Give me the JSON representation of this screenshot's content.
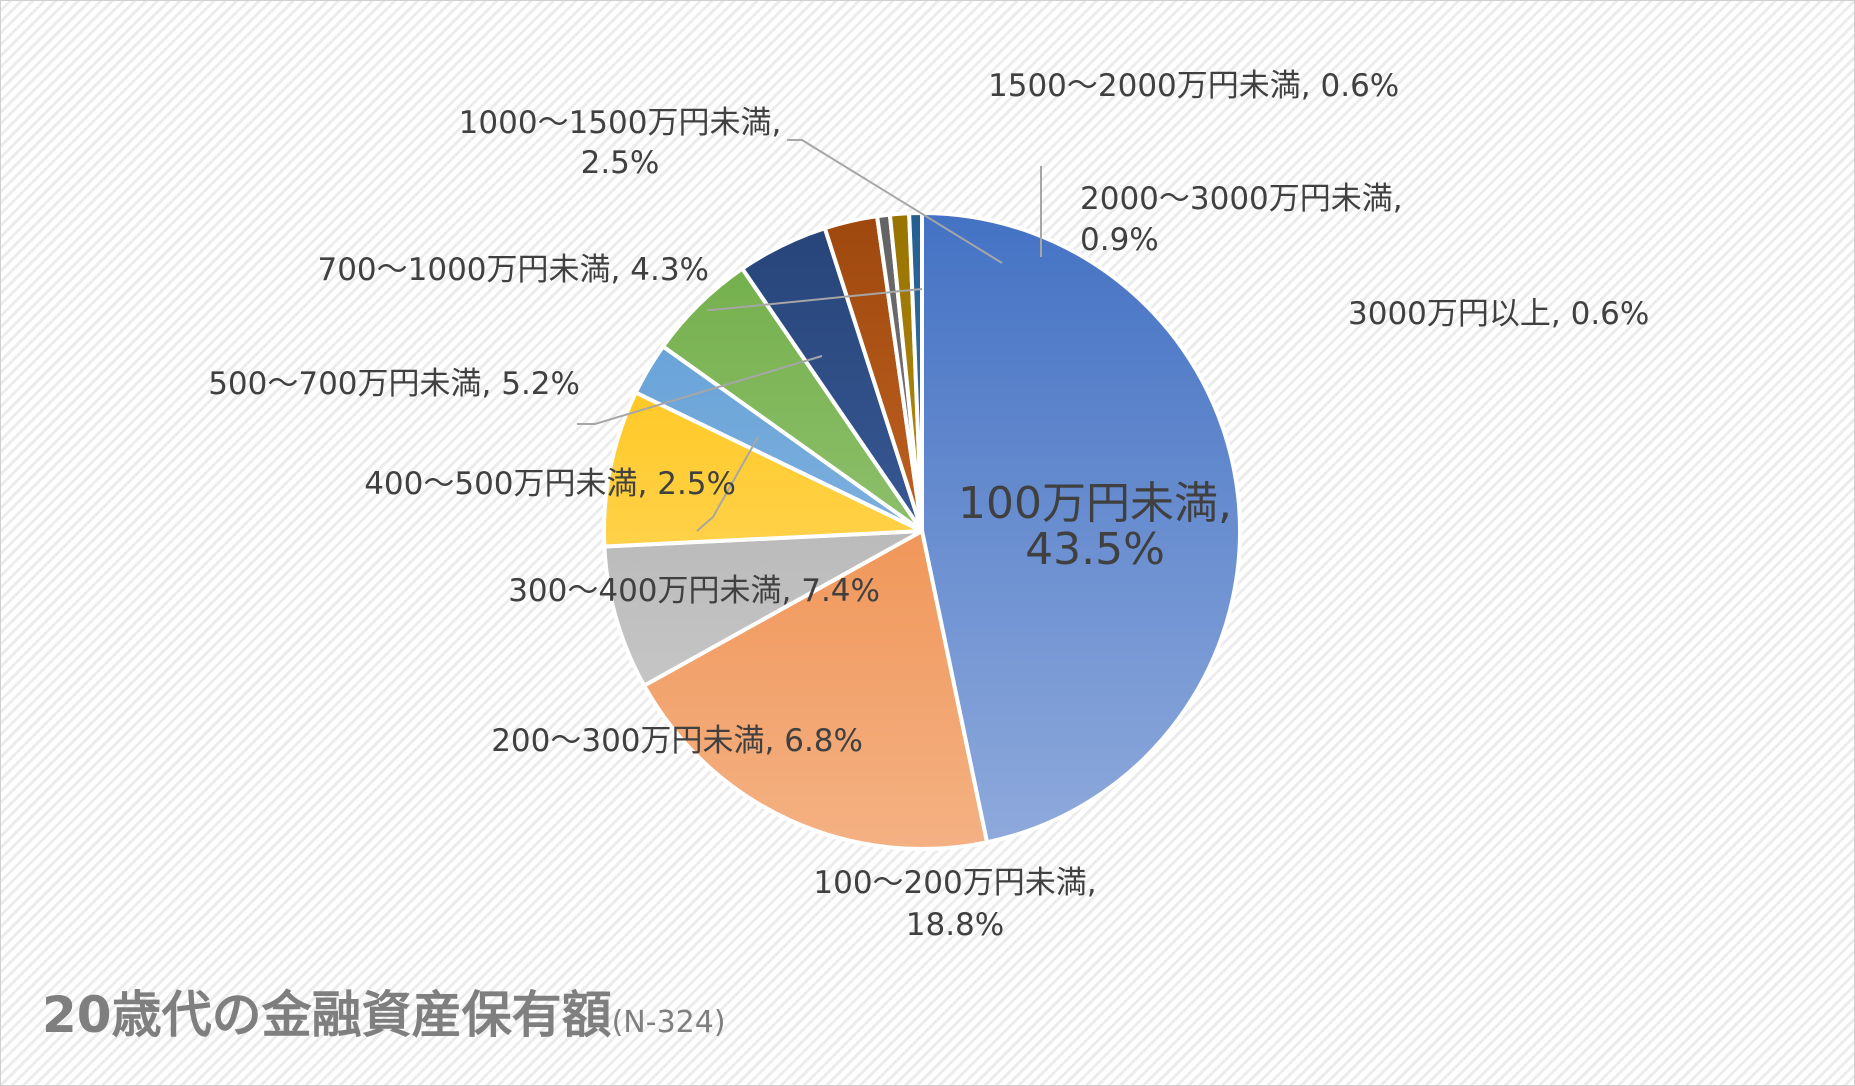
{
  "chart_data": {
    "type": "pie",
    "title": "20歳代の金融資産保有額",
    "subtitle": "(N-324)",
    "slices": [
      {
        "category": "100万円未満",
        "value": 43.5,
        "label": "43.5%",
        "color": "#4472C4",
        "color_light": "#8FAADC"
      },
      {
        "category": "100～200万円未満",
        "value": 18.8,
        "label": "18.8%",
        "color": "#ED7D31",
        "color_light": "#F4B183"
      },
      {
        "category": "200～300万円未満",
        "value": 6.8,
        "label": "6.8%",
        "color": "#A5A5A5",
        "color_light": "#D0D0D0"
      },
      {
        "category": "300～400万円未満",
        "value": 7.4,
        "label": "7.4%",
        "color": "#FFC000",
        "color_light": "#FFE18A"
      },
      {
        "category": "400～500万円未満",
        "value": 2.5,
        "label": "2.5%",
        "color": "#5B9BD5",
        "color_light": "#9DC3E6"
      },
      {
        "category": "500～700万円未満",
        "value": 5.2,
        "label": "5.2%",
        "color": "#70AD47",
        "color_light": "#A9D18E"
      },
      {
        "category": "700～1000万円未満",
        "value": 4.3,
        "label": "4.3%",
        "color": "#264478",
        "color_light": "#4A6BB0"
      },
      {
        "category": "1000～1500万円未満",
        "value": 2.5,
        "label": "2.5%",
        "color": "#9E480E",
        "color_light": "#E07A34"
      },
      {
        "category": "1500～2000万円未満",
        "value": 0.6,
        "label": "0.6%",
        "color": "#636363",
        "color_light": "#8A8A8A"
      },
      {
        "category": "2000～3000万円未満",
        "value": 0.9,
        "label": "0.9%",
        "color": "#997300",
        "color_light": "#C9A227"
      },
      {
        "category": "3000万円以上",
        "value": 0.6,
        "label": "0.6%",
        "color": "#255E91",
        "color_light": "#4F86C1"
      }
    ],
    "start_angle": "12 o'clock",
    "direction": "clockwise",
    "legend": "none"
  }
}
